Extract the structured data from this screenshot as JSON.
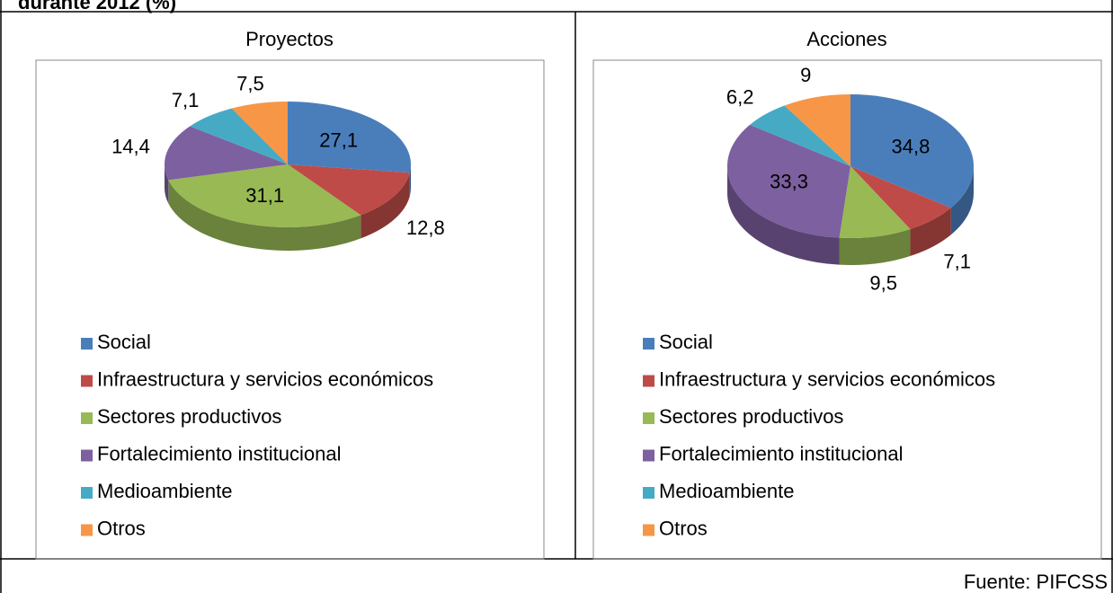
{
  "header": "durante 2012 (%)",
  "source": "Fuente: PIFCSS",
  "chart_data": [
    {
      "type": "pie",
      "title": "Proyectos",
      "categories": [
        "Social",
        "Infraestructura y servicios económicos",
        "Sectores productivos",
        "Fortalecimiento institucional",
        "Medioambiente",
        "Otros"
      ],
      "values": [
        27.1,
        12.8,
        31.1,
        14.4,
        7.1,
        7.5
      ],
      "value_labels": [
        "27,1",
        "12,8",
        "31,1",
        "14,4",
        "7,1",
        "7,5"
      ],
      "colors": [
        "#4a7ebb",
        "#be4b48",
        "#98b954",
        "#7d60a0",
        "#46aac5",
        "#f79646"
      ]
    },
    {
      "type": "pie",
      "title": "Acciones",
      "categories": [
        "Social",
        "Infraestructura y servicios económicos",
        "Sectores productivos",
        "Fortalecimiento institucional",
        "Medioambiente",
        "Otros"
      ],
      "values": [
        34.8,
        7.1,
        9.5,
        33.3,
        6.2,
        9
      ],
      "value_labels": [
        "34,8",
        "7,1",
        "9,5",
        "33,3",
        "6,2",
        "9"
      ],
      "colors": [
        "#4a7ebb",
        "#be4b48",
        "#98b954",
        "#7d60a0",
        "#46aac5",
        "#f79646"
      ]
    }
  ]
}
